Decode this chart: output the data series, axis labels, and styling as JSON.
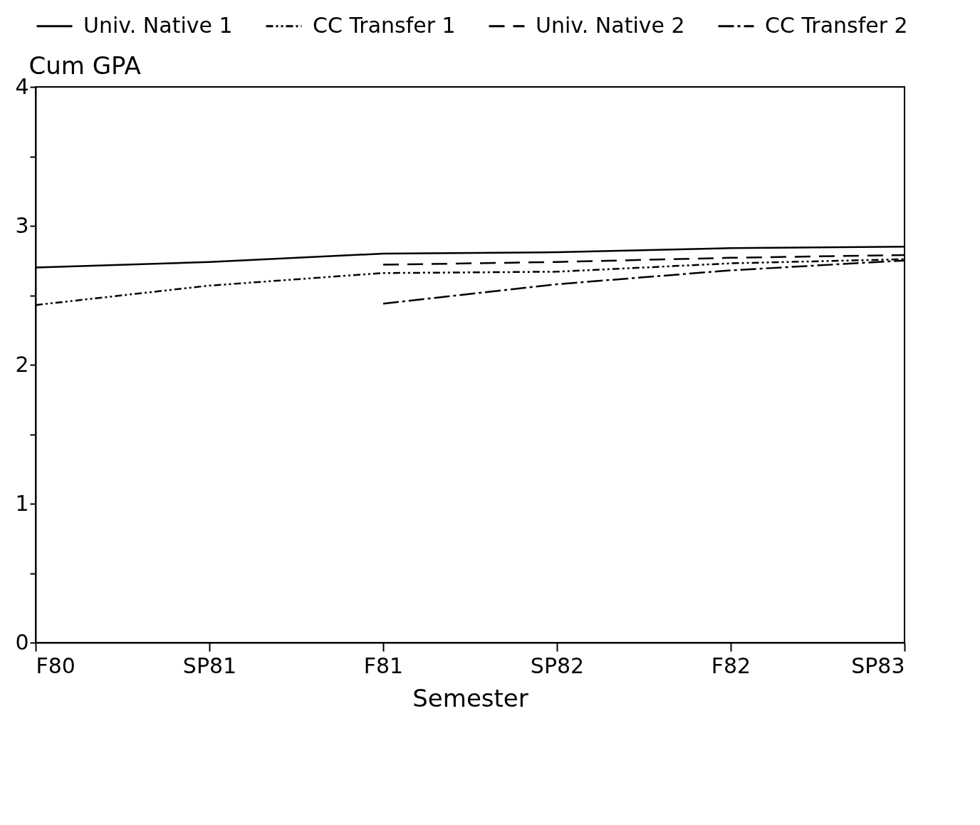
{
  "chart_data": {
    "type": "line",
    "xlabel": "Semester",
    "ylabel": "Cum GPA",
    "categories": [
      "F80",
      "SP81",
      "F81",
      "SP82",
      "F82",
      "SP83"
    ],
    "ylim": [
      0,
      4
    ],
    "yticks": [
      0,
      {
        "value": 0.5,
        "label": null
      },
      1,
      {
        "value": 1.5,
        "label": null
      },
      2,
      {
        "value": 2.5,
        "label": null
      },
      3,
      {
        "value": 3.5,
        "label": null
      },
      4
    ],
    "grid": false,
    "legend": "top",
    "marker": "none",
    "series": [
      {
        "name": "Univ. Native 1",
        "color": "#000000",
        "line_style": "solid",
        "values": [
          2.7,
          2.74,
          2.8,
          2.81,
          2.84,
          2.85
        ]
      },
      {
        "name": "CC Transfer 1",
        "color": "#000000",
        "line_style": "dotted",
        "values": [
          2.43,
          2.57,
          2.66,
          2.67,
          2.73,
          2.76
        ]
      },
      {
        "name": "Univ. Native 2",
        "color": "#000000",
        "line_style": "dashed",
        "values": [
          null,
          null,
          2.72,
          2.74,
          2.77,
          2.79
        ]
      },
      {
        "name": "CC Transfer 2",
        "color": "#000000",
        "line_style": "dashdot",
        "values": [
          null,
          null,
          2.44,
          2.58,
          2.68,
          2.75
        ]
      }
    ]
  }
}
